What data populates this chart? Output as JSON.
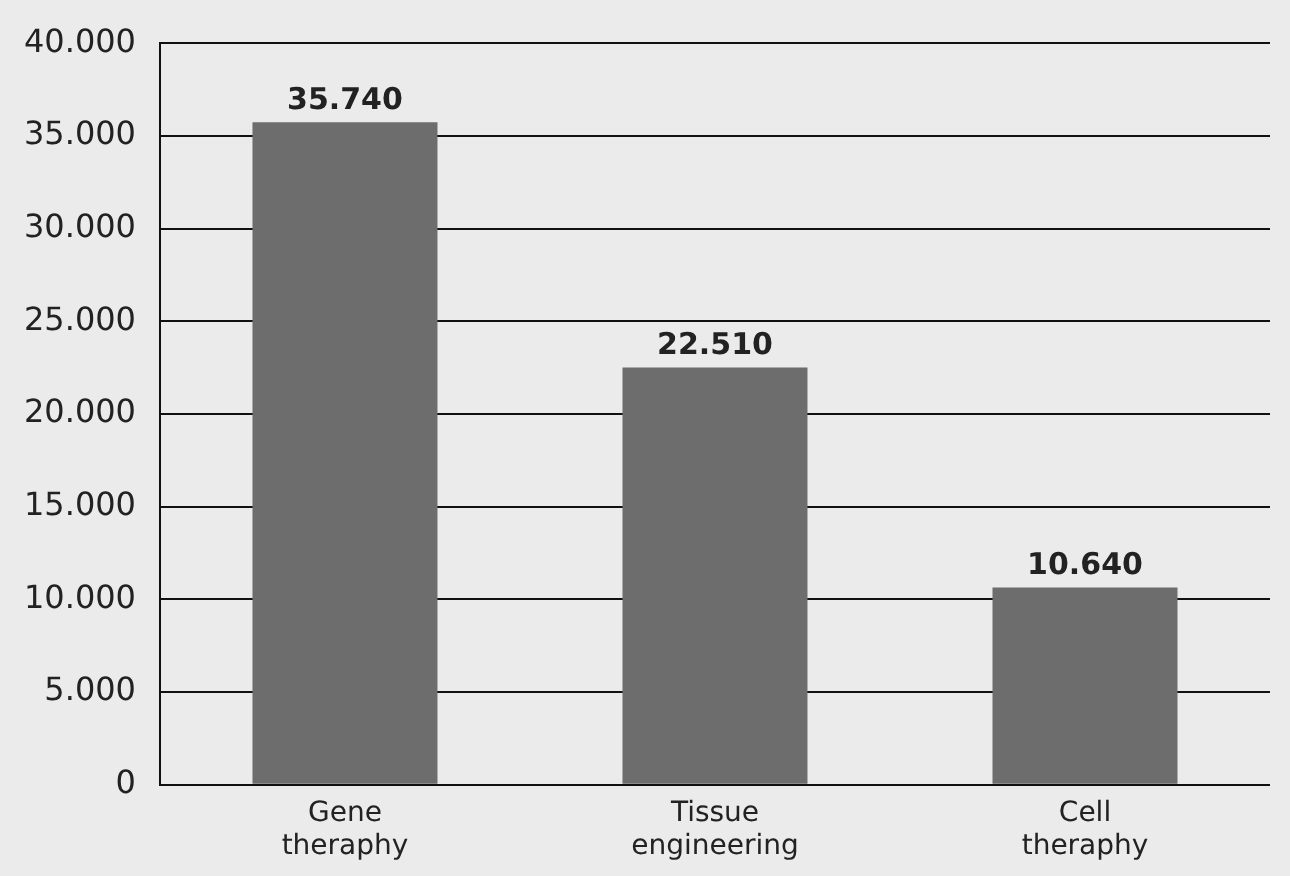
{
  "chart_data": {
    "type": "bar",
    "categories": [
      "Gene theraphy",
      "Tissue engineering",
      "Cell theraphy"
    ],
    "values": [
      35740,
      22510,
      10640
    ],
    "color": "#6d6d6d",
    "value_labels": [
      "35.740",
      "22.510",
      "10.640"
    ],
    "ylim": [
      0,
      40000
    ],
    "yticks": [
      {
        "value": 0,
        "label": "0"
      },
      {
        "value": 5000,
        "label": "5.000"
      },
      {
        "value": 10000,
        "label": "10.000"
      },
      {
        "value": 15000,
        "label": "15.000"
      },
      {
        "value": 20000,
        "label": "20.000"
      },
      {
        "value": 25000,
        "label": "25.000"
      },
      {
        "value": 30000,
        "label": "30.000"
      },
      {
        "value": 35000,
        "label": "35.000"
      },
      {
        "value": 40000,
        "label": "40.000"
      }
    ],
    "grid": "y"
  }
}
